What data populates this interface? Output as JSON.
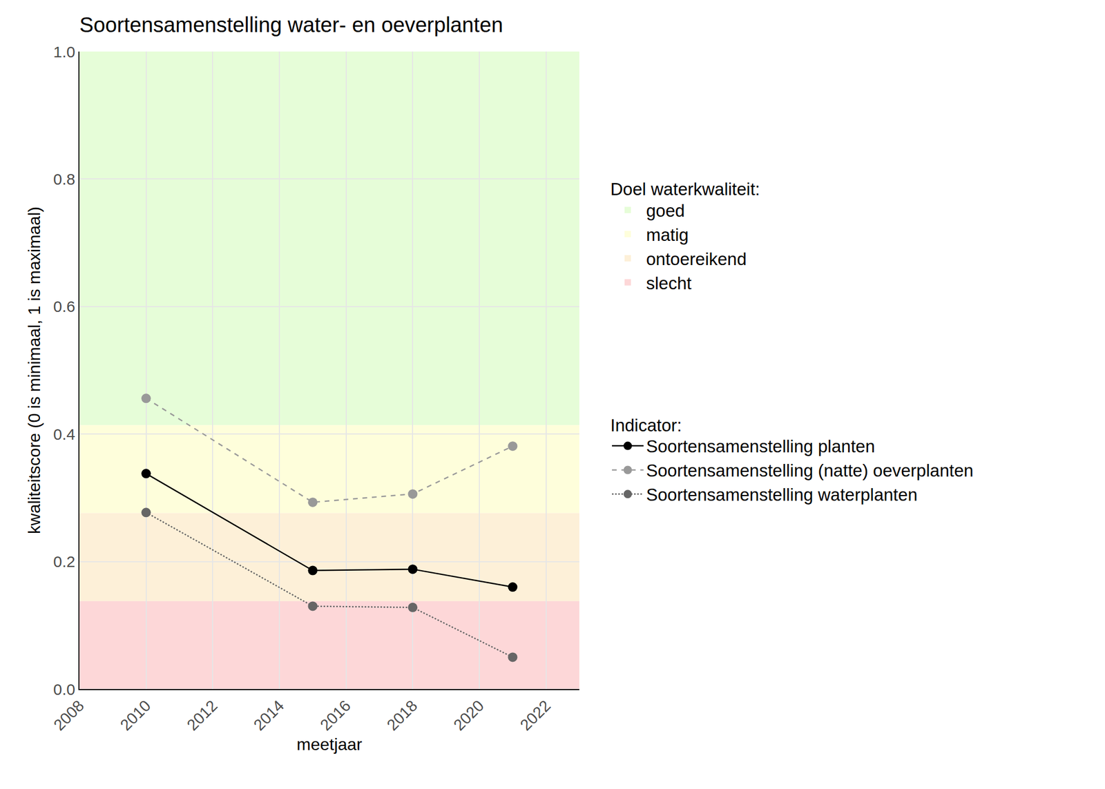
{
  "chart_data": {
    "type": "line",
    "title": "Soortensamenstelling water- en oeverplanten",
    "x_label": "meetjaar",
    "y_label": "kwaliteitscore (0 is minimaal, 1 is maximaal)",
    "x": [
      2010,
      2015,
      2018,
      2021
    ],
    "series": [
      {
        "name": "Soortensamenstelling planten",
        "color": "#000000",
        "line_style": "solid",
        "marker": "circle",
        "values": [
          0.338,
          0.186,
          0.188,
          0.16
        ]
      },
      {
        "name": "Soortensamenstelling (natte) oeverplanten",
        "color": "#999999",
        "line_style": "dash",
        "marker": "circle",
        "values": [
          0.456,
          0.293,
          0.306,
          0.381
        ]
      },
      {
        "name": "Soortensamenstelling waterplanten",
        "color": "#666666",
        "line_style": "dot",
        "marker": "circle",
        "values": [
          0.277,
          0.13,
          0.128,
          0.05
        ]
      }
    ],
    "xlim": [
      2008,
      2023
    ],
    "xticks": [
      2008,
      2010,
      2012,
      2014,
      2016,
      2018,
      2020,
      2022
    ],
    "ylim": [
      0,
      1
    ],
    "yticks": [
      {
        "value": 0,
        "label": "0.0"
      },
      0.2,
      0.4,
      0.6,
      0.8,
      {
        "value": 1,
        "label": "1.0"
      }
    ],
    "grid": true,
    "legend": "right",
    "legend_title": "Indicator:",
    "bands_title": "Doel waterkwaliteit:",
    "bands": [
      {
        "name": "goed",
        "from": 0.414,
        "to": 1,
        "color": "#e6fdd8"
      },
      {
        "name": "matig",
        "from": 0.276,
        "to": 0.414,
        "color": "#fefedb"
      },
      {
        "name": "ontoereikend",
        "from": 0.138,
        "to": 0.276,
        "color": "#fdf0d8"
      },
      {
        "name": "slecht",
        "from": 0,
        "to": 0.138,
        "color": "#fdd7d8"
      }
    ]
  }
}
